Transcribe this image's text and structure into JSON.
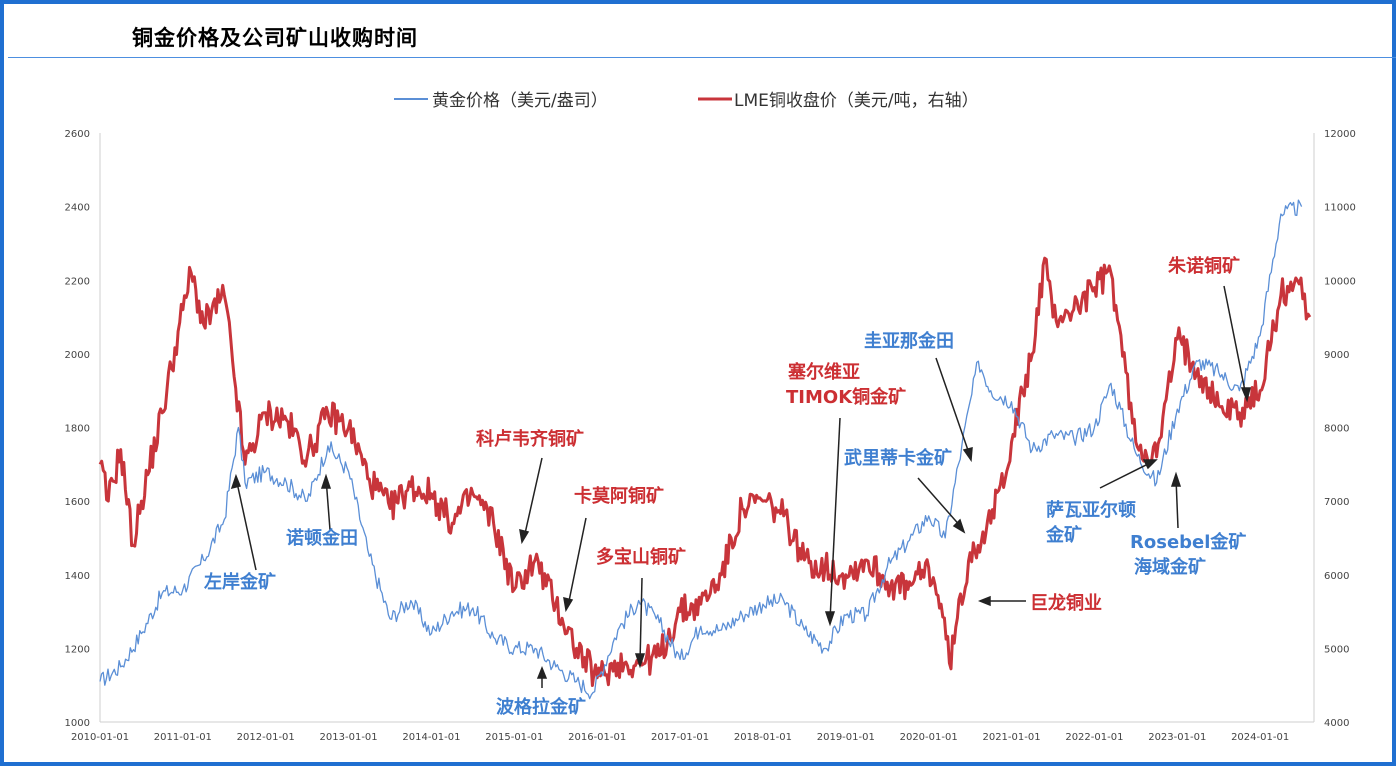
{
  "page_title": "铜金价格及公司矿山收购时间",
  "chart_data": {
    "type": "line",
    "title": "",
    "legend_position": "top",
    "x_ticks": [
      "2010-01-01",
      "2011-01-01",
      "2012-01-01",
      "2013-01-01",
      "2014-01-01",
      "2015-01-01",
      "2016-01-01",
      "2017-01-01",
      "2018-01-01",
      "2019-01-01",
      "2020-01-01",
      "2021-01-01",
      "2022-01-01",
      "2023-01-01",
      "2024-01-01"
    ],
    "y_left": {
      "ylim": [
        1000,
        2600
      ],
      "ticks": [
        "1000",
        "1200",
        "1400",
        "1600",
        "1800",
        "2000",
        "2200",
        "2400",
        "2600"
      ]
    },
    "y_right": {
      "ylim": [
        4000,
        12000
      ],
      "ticks": [
        "4000",
        "5000",
        "6000",
        "7000",
        "8000",
        "9000",
        "10000",
        "11000",
        "12000"
      ]
    },
    "series": [
      {
        "name": "黄金价格（美元/盎司）",
        "axis": "left",
        "color": "#5b8fd6",
        "x": [
          2010.0,
          2010.25,
          2010.5,
          2010.75,
          2011.0,
          2011.25,
          2011.5,
          2011.67,
          2011.75,
          2012.0,
          2012.25,
          2012.5,
          2012.75,
          2013.0,
          2013.25,
          2013.5,
          2013.75,
          2014.0,
          2014.25,
          2014.5,
          2014.75,
          2015.0,
          2015.25,
          2015.5,
          2015.75,
          2015.95,
          2016.25,
          2016.5,
          2016.75,
          2017.0,
          2017.25,
          2017.5,
          2017.75,
          2018.0,
          2018.25,
          2018.5,
          2018.75,
          2019.0,
          2019.25,
          2019.5,
          2019.75,
          2020.0,
          2020.2,
          2020.4,
          2020.6,
          2020.75,
          2021.0,
          2021.25,
          2021.5,
          2021.75,
          2022.0,
          2022.2,
          2022.5,
          2022.75,
          2023.0,
          2023.25,
          2023.5,
          2023.75,
          2024.0,
          2024.25,
          2024.5
        ],
        "values": [
          1110,
          1150,
          1240,
          1350,
          1360,
          1440,
          1550,
          1800,
          1650,
          1680,
          1650,
          1600,
          1750,
          1680,
          1450,
          1280,
          1330,
          1240,
          1300,
          1310,
          1230,
          1200,
          1200,
          1150,
          1110,
          1080,
          1250,
          1330,
          1270,
          1170,
          1260,
          1250,
          1290,
          1320,
          1330,
          1250,
          1200,
          1290,
          1290,
          1420,
          1490,
          1560,
          1500,
          1750,
          1980,
          1900,
          1870,
          1740,
          1780,
          1770,
          1800,
          1920,
          1730,
          1650,
          1850,
          1980,
          1950,
          1900,
          2050,
          2380,
          2400
        ]
      },
      {
        "name": "LME铜收盘价（美元/吨，右轴）",
        "axis": "right",
        "color": "#c8353b",
        "x": [
          2010.0,
          2010.1,
          2010.25,
          2010.4,
          2010.5,
          2010.75,
          2011.0,
          2011.1,
          2011.25,
          2011.5,
          2011.6,
          2011.75,
          2012.0,
          2012.25,
          2012.5,
          2012.75,
          2013.0,
          2013.25,
          2013.5,
          2013.75,
          2014.0,
          2014.25,
          2014.5,
          2014.75,
          2015.0,
          2015.25,
          2015.5,
          2015.75,
          2016.0,
          2016.25,
          2016.5,
          2016.75,
          2017.0,
          2017.25,
          2017.5,
          2017.75,
          2018.0,
          2018.25,
          2018.5,
          2018.75,
          2019.0,
          2019.25,
          2019.5,
          2019.75,
          2020.0,
          2020.15,
          2020.25,
          2020.5,
          2020.75,
          2021.0,
          2021.25,
          2021.4,
          2021.5,
          2021.75,
          2022.0,
          2022.2,
          2022.5,
          2022.75,
          2023.0,
          2023.25,
          2023.5,
          2023.75,
          2024.0,
          2024.25,
          2024.45,
          2024.6
        ],
        "values": [
          7500,
          7000,
          7700,
          6400,
          7000,
          8200,
          9600,
          10100,
          9400,
          9800,
          8900,
          7500,
          8200,
          8100,
          7600,
          8200,
          8000,
          7300,
          6900,
          7200,
          7100,
          6700,
          7100,
          6700,
          5800,
          6200,
          5600,
          5000,
          4600,
          4800,
          4800,
          4900,
          5500,
          5600,
          6000,
          6900,
          7000,
          6800,
          6200,
          6100,
          6000,
          6200,
          5900,
          5800,
          6100,
          5600,
          4800,
          6300,
          6700,
          7800,
          9000,
          10300,
          9500,
          9600,
          9900,
          10100,
          7800,
          7600,
          9200,
          8800,
          8300,
          8200,
          8500,
          9800,
          10000,
          9500
        ]
      }
    ]
  },
  "annotations": [
    {
      "text": "左岸金矿",
      "color": "#3f7fd0"
    },
    {
      "text": "诺顿金田",
      "color": "#3f7fd0"
    },
    {
      "text": "科卢韦齐铜矿",
      "color": "#cc2f33"
    },
    {
      "text": "卡莫阿铜矿",
      "color": "#cc2f33"
    },
    {
      "text": "多宝山铜矿",
      "color": "#cc2f33"
    },
    {
      "text": "波格拉金矿",
      "color": "#3f7fd0"
    },
    {
      "text": "塞尔维亚",
      "color": "#cc2f33"
    },
    {
      "text": "TIMOK铜金矿",
      "color": "#cc2f33"
    },
    {
      "text": "圭亚那金田",
      "color": "#3f7fd0"
    },
    {
      "text": "武里蒂卡金矿",
      "color": "#3f7fd0"
    },
    {
      "text": "巨龙铜业",
      "color": "#cc2f33"
    },
    {
      "text": "萨瓦亚尔顿",
      "color": "#3f7fd0"
    },
    {
      "text": "金矿",
      "color": "#3f7fd0"
    },
    {
      "text": "Rosebel金矿",
      "color": "#3f7fd0"
    },
    {
      "text": "海域金矿",
      "color": "#3f7fd0"
    },
    {
      "text": "朱诺铜矿",
      "color": "#cc2f33"
    }
  ]
}
